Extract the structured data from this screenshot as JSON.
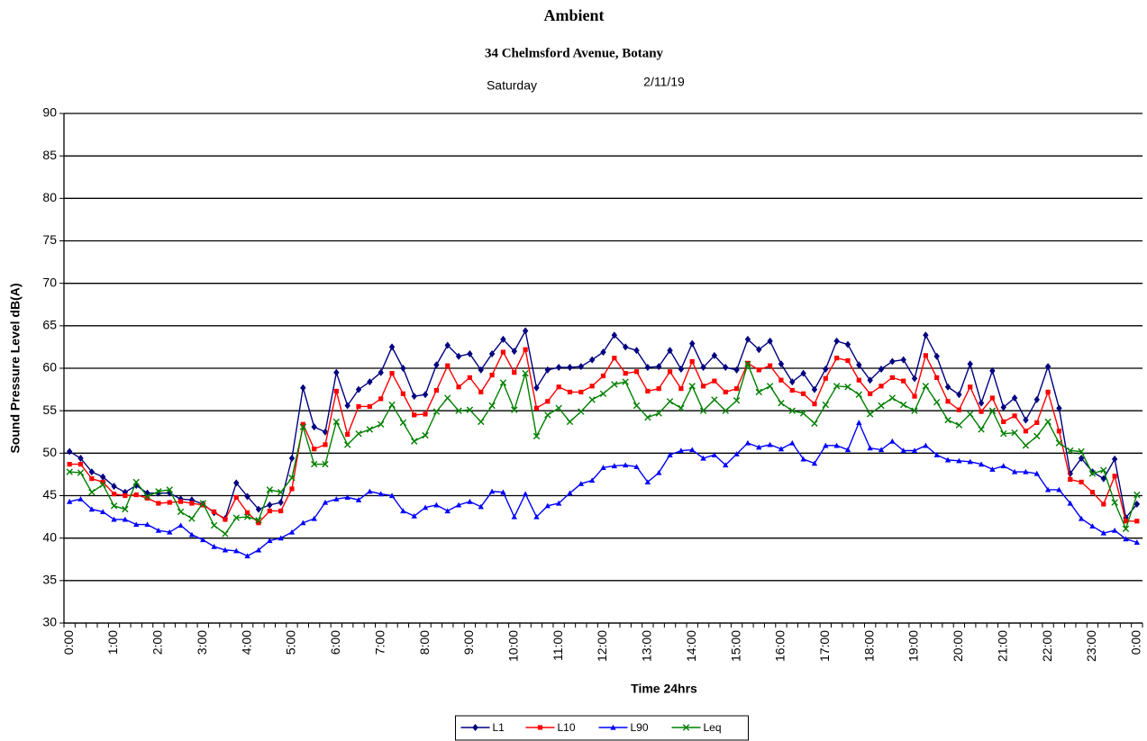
{
  "chart_data": {
    "type": "line",
    "title": "Ambient",
    "subtitle": "34 Chelmsford Avenue, Botany",
    "day": "Saturday",
    "date": "2/11/19",
    "x_label": "Time 24hrs",
    "y_label": "Sound Pressure Level dB(A)",
    "categories": [
      "0:00",
      null,
      null,
      null,
      "1:00",
      null,
      null,
      null,
      "2:00",
      null,
      null,
      null,
      "3:00",
      null,
      null,
      null,
      "4:00",
      null,
      null,
      null,
      "5:00",
      null,
      null,
      null,
      "6:00",
      null,
      null,
      null,
      "7:00",
      null,
      null,
      null,
      "8:00",
      null,
      null,
      null,
      "9:00",
      null,
      null,
      null,
      "10:00",
      null,
      null,
      null,
      "11:00",
      null,
      null,
      null,
      "12:00",
      null,
      null,
      null,
      "13:00",
      null,
      null,
      null,
      "14:00",
      null,
      null,
      null,
      "15:00",
      null,
      null,
      null,
      "16:00",
      null,
      null,
      null,
      "17:00",
      null,
      null,
      null,
      "18:00",
      null,
      null,
      null,
      "19:00",
      null,
      null,
      null,
      "20:00",
      null,
      null,
      null,
      "21:00",
      null,
      null,
      null,
      "22:00",
      null,
      null,
      null,
      "23:00",
      null,
      null,
      null,
      "0:00"
    ],
    "ylim": [
      30,
      90
    ],
    "yticks": [
      30,
      35,
      40,
      45,
      50,
      55,
      60,
      65,
      70,
      75,
      80,
      85,
      90
    ],
    "grid": true,
    "legend": "bottom",
    "series": [
      {
        "name": "L1",
        "color": "#000080",
        "marker": "diamond",
        "values": [
          50.2,
          49.4,
          47.8,
          47.2,
          46.1,
          45.4,
          46.2,
          45.3,
          45.3,
          45.3,
          44.6,
          44.5,
          44.0,
          43.0,
          42.3,
          46.5,
          44.9,
          43.4,
          43.9,
          44.2,
          49.4,
          57.7,
          53.1,
          52.5,
          59.5,
          55.6,
          57.5,
          58.4,
          59.5,
          62.5,
          60.0,
          56.7,
          56.9,
          60.4,
          62.7,
          61.4,
          61.7,
          59.8,
          61.7,
          63.4,
          62.0,
          64.4,
          57.7,
          59.8,
          60.1,
          60.1,
          60.2,
          61.0,
          61.9,
          63.9,
          62.5,
          62.1,
          60.1,
          60.2,
          62.1,
          59.9,
          62.9,
          60.1,
          61.5,
          60.1,
          59.8,
          63.4,
          62.2,
          63.2,
          60.5,
          58.4,
          59.4,
          57.5,
          59.9,
          63.2,
          62.8,
          60.4,
          58.6,
          59.9,
          60.8,
          61.0,
          58.8,
          63.9,
          61.4,
          57.8,
          56.9,
          60.5,
          55.9,
          59.7,
          55.4,
          56.5,
          53.9,
          56.3,
          60.2,
          55.3,
          47.6,
          49.4,
          47.8,
          47.0,
          49.3,
          42.4,
          44.0
        ]
      },
      {
        "name": "L10",
        "color": "#ff0000",
        "marker": "square",
        "values": [
          48.7,
          48.7,
          47.0,
          46.6,
          45.2,
          45.0,
          45.1,
          44.7,
          44.1,
          44.2,
          44.3,
          44.1,
          43.9,
          43.1,
          42.2,
          44.8,
          43.0,
          41.8,
          43.2,
          43.2,
          45.8,
          53.4,
          50.5,
          51.0,
          57.3,
          52.2,
          55.5,
          55.5,
          56.4,
          59.4,
          57.0,
          54.5,
          54.6,
          57.4,
          60.3,
          57.8,
          58.9,
          57.2,
          59.2,
          61.9,
          59.5,
          62.2,
          55.3,
          56.1,
          57.8,
          57.2,
          57.2,
          57.9,
          59.1,
          61.2,
          59.4,
          59.6,
          57.3,
          57.6,
          59.6,
          57.6,
          60.8,
          57.9,
          58.5,
          57.2,
          57.6,
          60.6,
          59.8,
          60.3,
          58.6,
          57.4,
          57.0,
          55.8,
          58.8,
          61.2,
          60.9,
          58.6,
          57.0,
          57.9,
          58.9,
          58.5,
          56.7,
          61.5,
          58.9,
          56.1,
          55.1,
          57.8,
          54.9,
          56.5,
          53.7,
          54.4,
          52.6,
          53.6,
          57.2,
          52.6,
          46.9,
          46.6,
          45.4,
          44.0,
          47.3,
          42.0,
          42.0
        ]
      },
      {
        "name": "L90",
        "color": "#0000ff",
        "marker": "triangle",
        "values": [
          44.3,
          44.6,
          43.4,
          43.1,
          42.2,
          42.2,
          41.6,
          41.6,
          40.9,
          40.7,
          41.5,
          40.4,
          39.8,
          39.0,
          38.6,
          38.5,
          37.9,
          38.6,
          39.7,
          40.0,
          40.7,
          41.8,
          42.3,
          44.2,
          44.6,
          44.8,
          44.5,
          45.5,
          45.2,
          45.0,
          43.2,
          42.6,
          43.6,
          43.9,
          43.2,
          43.9,
          44.3,
          43.7,
          45.5,
          45.4,
          42.5,
          45.2,
          42.5,
          43.8,
          44.1,
          45.3,
          46.4,
          46.8,
          48.3,
          48.5,
          48.6,
          48.4,
          46.6,
          47.7,
          49.8,
          50.3,
          50.4,
          49.4,
          49.8,
          48.6,
          49.9,
          51.2,
          50.7,
          51.0,
          50.5,
          51.2,
          49.3,
          48.8,
          50.9,
          50.9,
          50.4,
          53.6,
          50.6,
          50.4,
          51.4,
          50.3,
          50.3,
          50.9,
          49.8,
          49.2,
          49.1,
          49.0,
          48.7,
          48.1,
          48.5,
          47.8,
          47.8,
          47.6,
          45.7,
          45.7,
          44.1,
          42.3,
          41.4,
          40.6,
          40.9,
          39.9,
          39.5
        ]
      },
      {
        "name": "Leq",
        "color": "#008000",
        "marker": "cross",
        "values": [
          47.8,
          47.7,
          45.4,
          46.3,
          43.8,
          43.4,
          46.6,
          44.9,
          45.5,
          45.7,
          43.1,
          42.3,
          44.1,
          41.5,
          40.5,
          42.4,
          42.5,
          42.1,
          45.7,
          45.4,
          47.1,
          53.1,
          48.7,
          48.7,
          53.7,
          51.0,
          52.3,
          52.8,
          53.4,
          55.7,
          53.6,
          51.4,
          52.1,
          54.9,
          56.5,
          55.0,
          55.1,
          53.7,
          55.6,
          58.3,
          55.1,
          59.4,
          52.0,
          54.5,
          55.3,
          53.7,
          54.9,
          56.3,
          57.0,
          58.1,
          58.4,
          55.6,
          54.2,
          54.7,
          56.1,
          55.3,
          57.9,
          55.0,
          56.3,
          55.0,
          56.2,
          60.5,
          57.2,
          57.9,
          55.9,
          55.0,
          54.7,
          53.5,
          55.7,
          57.9,
          57.8,
          56.9,
          54.6,
          55.6,
          56.5,
          55.7,
          55.0,
          57.9,
          56.0,
          53.9,
          53.3,
          54.6,
          52.8,
          55.0,
          52.3,
          52.4,
          50.9,
          52.0,
          53.7,
          51.2,
          50.3,
          50.2,
          47.6,
          48.0,
          44.2,
          41.1,
          45.1
        ]
      }
    ]
  }
}
